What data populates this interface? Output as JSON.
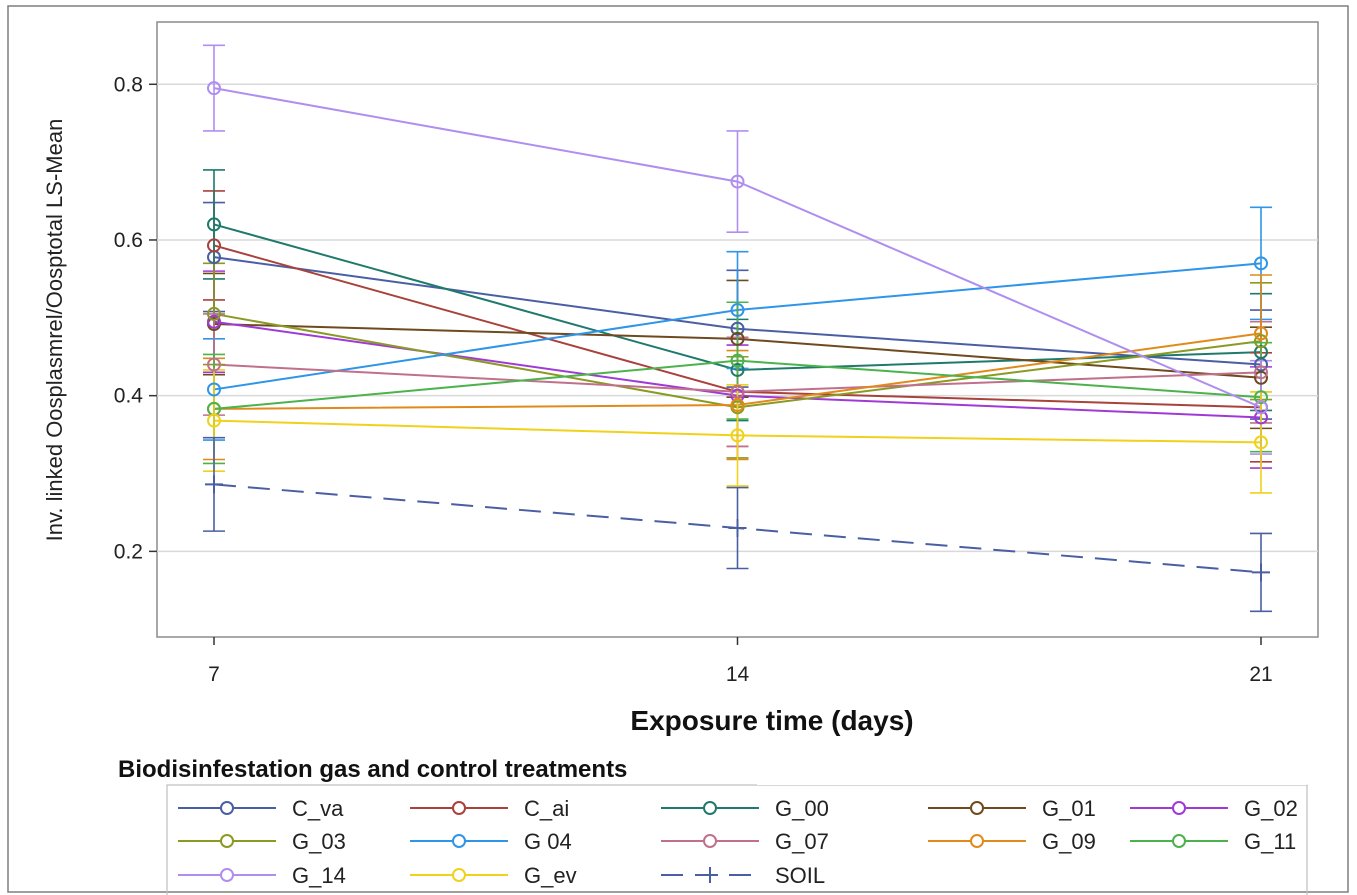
{
  "chart_data": {
    "type": "line",
    "xlabel": "Exposure time (days)",
    "ylabel": "Inv. linked Oosplasmrel/Oosptotal LS-Mean",
    "x": [
      7,
      14,
      21
    ],
    "x_tick_labels": [
      "7",
      "14",
      "21"
    ],
    "y_ticks": [
      0.2,
      0.4,
      0.6,
      0.8
    ],
    "y_tick_labels": [
      "0.2",
      "0.4",
      "0.6",
      "0.8"
    ],
    "ylim": [
      0.09,
      0.88
    ],
    "xlim": [
      7,
      21
    ],
    "grid": "horizontal",
    "legend_title": "Biodisinfestation gas and control treatments",
    "legend_position": "bottom",
    "series": [
      {
        "name": "C_va",
        "color": "#4a5fa3",
        "marker": "circle",
        "dash": false,
        "values": [
          0.578,
          0.486,
          0.44
        ],
        "errors": [
          0.07,
          0.075,
          0.07
        ]
      },
      {
        "name": "C_ai",
        "color": "#a8423a",
        "marker": "circle",
        "dash": false,
        "values": [
          0.593,
          0.405,
          0.385
        ],
        "errors": [
          0.07,
          0.07,
          0.07
        ]
      },
      {
        "name": "G_00",
        "color": "#1f7a6c",
        "marker": "circle",
        "dash": false,
        "values": [
          0.62,
          0.433,
          0.456
        ],
        "errors": [
          0.07,
          0.065,
          0.075
        ]
      },
      {
        "name": "G_01",
        "color": "#6e4a1e",
        "marker": "circle",
        "dash": false,
        "values": [
          0.492,
          0.473,
          0.423
        ],
        "errors": [
          0.065,
          0.075,
          0.065
        ]
      },
      {
        "name": "G_02",
        "color": "#a03ad6",
        "marker": "circle",
        "dash": false,
        "values": [
          0.495,
          0.4,
          0.372
        ],
        "errors": [
          0.065,
          0.065,
          0.065
        ]
      },
      {
        "name": "G_03",
        "color": "#8a9a22",
        "marker": "circle",
        "dash": false,
        "values": [
          0.505,
          0.385,
          0.47
        ],
        "errors": [
          0.065,
          0.065,
          0.075
        ]
      },
      {
        "name": "G_04",
        "color": "#2f95e8",
        "marker": "circle",
        "dash": false,
        "values": [
          0.408,
          0.51,
          0.57
        ],
        "errors": [
          0.065,
          0.075,
          0.072
        ]
      },
      {
        "name": "G_07",
        "color": "#c0708a",
        "marker": "circle",
        "dash": false,
        "values": [
          0.44,
          0.405,
          0.43
        ],
        "errors": [
          0.065,
          0.07,
          0.065
        ]
      },
      {
        "name": "G_09",
        "color": "#e08a1a",
        "marker": "circle",
        "dash": false,
        "values": [
          0.383,
          0.388,
          0.48
        ],
        "errors": [
          0.065,
          0.07,
          0.075
        ]
      },
      {
        "name": "G_11",
        "color": "#4cb24c",
        "marker": "circle",
        "dash": false,
        "values": [
          0.383,
          0.445,
          0.398
        ],
        "errors": [
          0.07,
          0.075,
          0.07
        ]
      },
      {
        "name": "G_14",
        "color": "#b08ef0",
        "marker": "circle",
        "dash": false,
        "values": [
          0.795,
          0.675,
          0.385
        ],
        "errors": [
          0.055,
          0.065,
          0.06
        ]
      },
      {
        "name": "G_ev",
        "color": "#f0d21a",
        "marker": "circle",
        "dash": false,
        "values": [
          0.368,
          0.349,
          0.34
        ],
        "errors": [
          0.065,
          0.065,
          0.065
        ]
      },
      {
        "name": "SOIL",
        "color": "#4a5fa3",
        "marker": "plus",
        "dash": true,
        "values": [
          0.286,
          0.23,
          0.173
        ],
        "errors": [
          0.06,
          0.052,
          0.05
        ]
      }
    ],
    "legend_rows": [
      [
        "C_va",
        "C_ai",
        "G_00",
        "G_01",
        "G_02"
      ],
      [
        "G_03",
        "G_04",
        "G_07",
        "G_09",
        "G_11"
      ],
      [
        "G_14",
        "G_ev",
        "SOIL"
      ]
    ],
    "legend_label_text": {
      "G_04": "G  04"
    }
  },
  "colors": {
    "frame": "#8c8c8c",
    "grid": "#d9d9d9",
    "axis": "#333333"
  }
}
